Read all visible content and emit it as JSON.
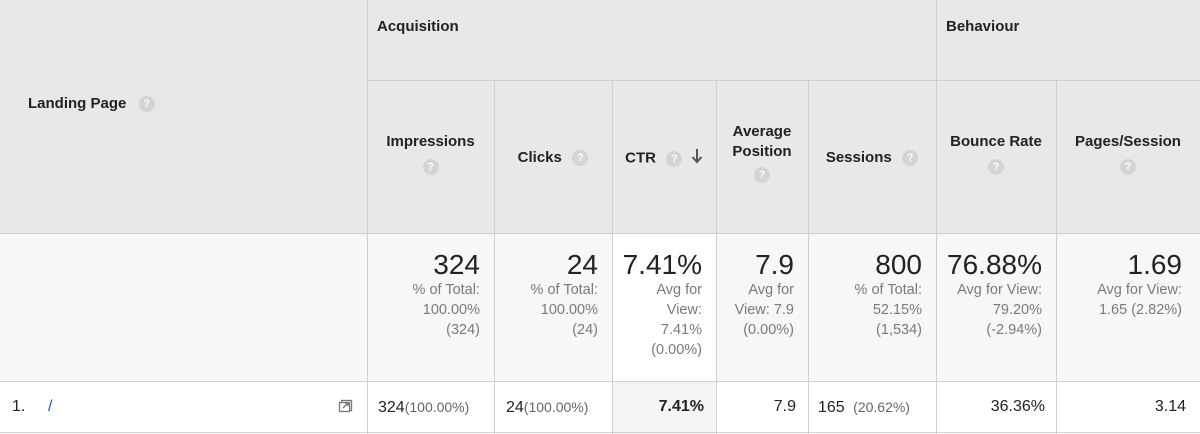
{
  "header": {
    "landing_page": "Landing Page",
    "groups": {
      "acquisition": "Acquisition",
      "behaviour": "Behaviour"
    },
    "columns": {
      "impressions": "Impressions",
      "clicks": "Clicks",
      "ctr": "CTR",
      "avg_position": "Average Position",
      "sessions": "Sessions",
      "bounce_rate": "Bounce Rate",
      "pages_session": "Pages/Session"
    },
    "help_glyph": "?"
  },
  "totals": {
    "impressions": {
      "value": "324",
      "lines": [
        "% of Total:",
        "100.00%",
        "(324)"
      ]
    },
    "clicks": {
      "value": "24",
      "lines": [
        "% of Total:",
        "100.00%",
        "(24)"
      ]
    },
    "ctr": {
      "value": "7.41%",
      "lines": [
        "Avg for",
        "View:",
        "7.41%",
        "(0.00%)"
      ]
    },
    "avg_position": {
      "value": "7.9",
      "lines": [
        "Avg for",
        "View: 7.9",
        "(0.00%)"
      ]
    },
    "sessions": {
      "value": "800",
      "lines": [
        "% of Total:",
        "52.15%",
        "(1,534)"
      ]
    },
    "bounce_rate": {
      "value": "76.88%",
      "lines": [
        "Avg for View:",
        "79.20%",
        "(-2.94%)"
      ]
    },
    "pages_session": {
      "value": "1.69",
      "lines": [
        "Avg for View:",
        "1.65 (2.82%)"
      ]
    }
  },
  "rows": [
    {
      "index": "1.",
      "page": "/",
      "impressions": "324",
      "impressions_pct": "(100.00%)",
      "clicks": "24",
      "clicks_pct": "(100.00%)",
      "ctr": "7.41%",
      "avg_position": "7.9",
      "sessions": "165",
      "sessions_pct": "(20.62%)",
      "bounce_rate": "36.36%",
      "pages_session": "3.14"
    }
  ],
  "icons": {
    "sort": "arrow-down-icon",
    "open_link": "open-link-icon",
    "help": "help-icon"
  },
  "colors": {
    "header_bg": "#e8e8e8",
    "border": "#d0d0d0",
    "link": "#1a5fb4",
    "muted": "#7a7a7a"
  }
}
